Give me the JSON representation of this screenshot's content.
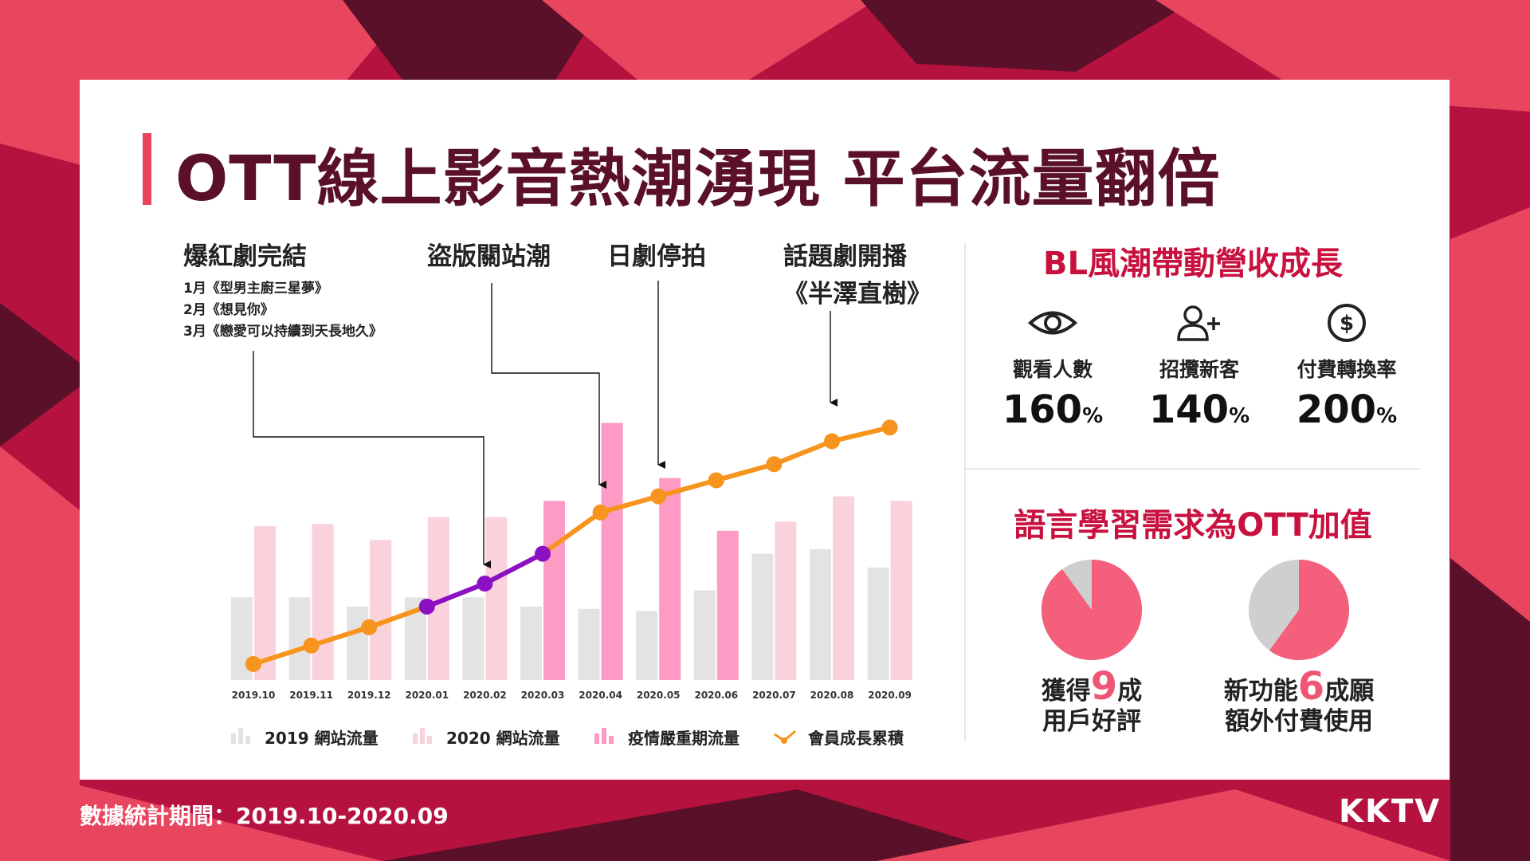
{
  "title": "OTT線上影音熱潮湧現  平台流量翻倍",
  "annotations": [
    {
      "head": "爆紅劇完結",
      "lines": [
        "1月《型男主廚三星夢》",
        "2月《想見你》",
        "3月《戀愛可以持續到天長地久》"
      ]
    },
    {
      "head": "盜版關站潮",
      "lines": []
    },
    {
      "head": "日劇停拍",
      "lines": []
    },
    {
      "head": "話題劇開播",
      "lines": [
        "《半澤直樹》"
      ]
    }
  ],
  "chart_data": {
    "type": "bar",
    "categories": [
      "2019.10",
      "2019.11",
      "2019.12",
      "2020.01",
      "2020.02",
      "2020.03",
      "2020.04",
      "2020.05",
      "2020.06",
      "2020.07",
      "2020.08",
      "2020.09"
    ],
    "series": [
      {
        "name": "2019 網站流量",
        "values": [
          36,
          36,
          32,
          36,
          36,
          32,
          31,
          30,
          39,
          55,
          57,
          49
        ],
        "color": "#e3e3e3"
      },
      {
        "name": "2020 網站流量",
        "values": [
          67,
          68,
          61,
          71,
          71,
          null,
          null,
          null,
          null,
          69,
          80,
          78
        ],
        "color": "#f9d2db"
      },
      {
        "name": "疫情嚴重期流量",
        "values": [
          null,
          null,
          null,
          null,
          null,
          78,
          112,
          88,
          65,
          null,
          null,
          null
        ],
        "color": "#fd9bc4"
      },
      {
        "name": "會員成長累積",
        "type": "line",
        "values": [
          7,
          15,
          23,
          32,
          42,
          55,
          73,
          80,
          87,
          94,
          104,
          110
        ],
        "color": "#f7941d",
        "highlight_color": "#8c10c4",
        "highlight_range": [
          3,
          5
        ]
      }
    ],
    "ylim": [
      0,
      125
    ]
  },
  "legend": [
    "2019 網站流量",
    "2020 網站流量",
    "疫情嚴重期流量",
    "會員成長累積"
  ],
  "right": {
    "section1_title": "BL風潮帶動營收成長",
    "stats": [
      {
        "icon": "eye-icon",
        "label": "觀看人數",
        "value": "160",
        "unit": "%"
      },
      {
        "icon": "add-user-icon",
        "label": "招攬新客",
        "value": "140",
        "unit": "%"
      },
      {
        "icon": "dollar-icon",
        "label": "付費轉換率",
        "value": "200",
        "unit": "%"
      }
    ],
    "section2_title": "語言學習需求為OTT加值",
    "pies": [
      {
        "value": 0.9,
        "pre": "獲得",
        "big": "9",
        "post": "成",
        "line2": "用戶好評"
      },
      {
        "value": 0.6,
        "pre": "新功能",
        "big": "6",
        "post": "成願",
        "line2": "額外付費使用"
      }
    ],
    "pie_colors": {
      "main": "#f45f7b",
      "rest": "#cfcfcf"
    }
  },
  "footer": "數據統計期間：2019.10-2020.09",
  "logo": "KKTV"
}
